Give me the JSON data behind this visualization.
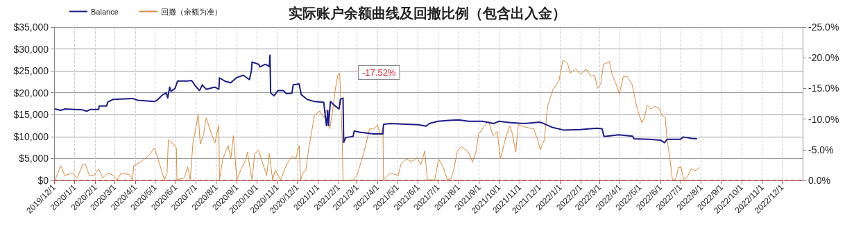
{
  "chart_data": {
    "type": "line",
    "title": "实际账户余额曲线及回撤比例（包含出入金）",
    "legend": "top left",
    "grid": true,
    "xlim": [
      "2019-12-01",
      "2023-01-01"
    ],
    "xticks": [
      {
        "value": "2019-12-01",
        "label": "2019/12/1"
      },
      {
        "value": "2020-01-01",
        "label": "2020/1/1"
      },
      {
        "value": "2020-02-01",
        "label": "2020/2/1"
      },
      {
        "value": "2020-03-01",
        "label": "2020/3/1"
      },
      {
        "value": "2020-04-01",
        "label": "2020/4/1"
      },
      {
        "value": "2020-05-01",
        "label": "2020/5/1"
      },
      {
        "value": "2020-06-01",
        "label": "2020/6/1"
      },
      {
        "value": "2020-07-01",
        "label": "2020/7/1"
      },
      {
        "value": "2020-08-01",
        "label": "2020/8/1"
      },
      {
        "value": "2020-09-01",
        "label": "2020/9/1"
      },
      {
        "value": "2020-10-01",
        "label": "2020/10/1"
      },
      {
        "value": "2020-11-01",
        "label": "2020/11/1"
      },
      {
        "value": "2020-12-01",
        "label": "2020/12/1"
      },
      {
        "value": "2021-01-01",
        "label": "2021/1/1"
      },
      {
        "value": "2021-02-01",
        "label": "2021/2/1"
      },
      {
        "value": "2021-03-01",
        "label": "2021/3/1"
      },
      {
        "value": "2021-04-01",
        "label": "2021/4/1"
      },
      {
        "value": "2021-05-01",
        "label": "2021/5/1"
      },
      {
        "value": "2021-06-01",
        "label": "2021/6/1"
      },
      {
        "value": "2021-07-01",
        "label": "2021/7/1"
      },
      {
        "value": "2021-08-01",
        "label": "2021/8/1"
      },
      {
        "value": "2021-09-01",
        "label": "2021/9/1"
      },
      {
        "value": "2021-10-01",
        "label": "2021/10/1"
      },
      {
        "value": "2021-11-01",
        "label": "2021/11/1"
      },
      {
        "value": "2021-12-01",
        "label": "2021/12/1"
      },
      {
        "value": "2022-01-01",
        "label": "2022/1/1"
      },
      {
        "value": "2022-02-01",
        "label": "2022/2/1"
      },
      {
        "value": "2022-03-01",
        "label": "2022/3/1"
      },
      {
        "value": "2022-04-01",
        "label": "2022/4/1"
      },
      {
        "value": "2022-05-01",
        "label": "2022/5/1"
      },
      {
        "value": "2022-06-01",
        "label": "2022/6/1"
      },
      {
        "value": "2022-07-01",
        "label": "2022/7/1"
      },
      {
        "value": "2022-08-01",
        "label": "2022/8/1"
      },
      {
        "value": "2022-09-01",
        "label": "2022/9/1"
      },
      {
        "value": "2022-10-01",
        "label": "2022/10/1"
      },
      {
        "value": "2022-11-01",
        "label": "2022/11/1"
      },
      {
        "value": "2022-12-01",
        "label": "2022/12/1"
      }
    ],
    "ylim": [
      0,
      35000
    ],
    "yticks": [
      {
        "value": 0,
        "label": "$0"
      },
      {
        "value": 5000,
        "label": "$5,000"
      },
      {
        "value": 10000,
        "label": "$10,000"
      },
      {
        "value": 15000,
        "label": "$15,000"
      },
      {
        "value": 20000,
        "label": "$20,000"
      },
      {
        "value": 25000,
        "label": "$25,000"
      },
      {
        "value": 30000,
        "label": "$30,000"
      },
      {
        "value": 35000,
        "label": "$35,000"
      }
    ],
    "y2lim": [
      0,
      -25
    ],
    "y2ticks": [
      {
        "value": 0,
        "label": "0.0%"
      },
      {
        "value": -5,
        "label": "-5.0%"
      },
      {
        "value": -10,
        "label": "-10.0%"
      },
      {
        "value": -15,
        "label": "-15.0%"
      },
      {
        "value": -20,
        "label": "-20.0%"
      },
      {
        "value": -25,
        "label": "-25.0%"
      }
    ],
    "annotations": [
      "-17.52%"
    ],
    "series": [
      {
        "name": "Balance",
        "color": "#1c1c8a",
        "x": [
          "2019-12-02",
          "2019-12-11",
          "2019-12-17",
          "2020-01-01",
          "2020-01-13",
          "2020-01-19",
          "2020-01-25",
          "2020-02-06",
          "2020-02-07",
          "2020-02-18",
          "2020-02-20",
          "2020-02-28",
          "2020-03-28",
          "2020-04-05",
          "2020-04-30",
          "2020-05-04",
          "2020-05-12",
          "2020-05-18",
          "2020-05-20",
          "2020-05-23",
          "2020-05-25",
          "2020-05-31",
          "2020-06-04",
          "2020-06-19",
          "2020-06-25",
          "2020-07-01",
          "2020-07-07",
          "2020-07-11",
          "2020-07-17",
          "2020-07-30",
          "2020-08-05",
          "2020-08-06",
          "2020-08-15",
          "2020-08-23",
          "2020-09-01",
          "2020-09-11",
          "2020-09-20",
          "2020-09-23",
          "2020-09-24",
          "2020-10-04",
          "2020-10-06",
          "2020-10-14",
          "2020-10-20",
          "2020-10-21",
          "2020-10-22",
          "2020-10-27",
          "2020-11-02",
          "2020-11-10",
          "2020-11-15",
          "2020-11-23",
          "2020-11-25",
          "2020-12-04",
          "2020-12-07",
          "2020-12-16",
          "2020-12-27",
          "2021-01-10",
          "2021-01-14",
          "2021-01-16",
          "2021-01-17",
          "2021-01-20",
          "2021-01-27",
          "2021-02-02",
          "2021-02-04",
          "2021-02-08",
          "2021-02-09",
          "2021-02-12",
          "2021-02-23",
          "2021-02-25",
          "2021-03-05",
          "2021-03-26",
          "2021-04-09",
          "2021-04-10",
          "2021-04-20",
          "2021-06-01",
          "2021-06-13",
          "2021-06-18",
          "2021-07-01",
          "2021-07-17",
          "2021-08-01",
          "2021-08-16",
          "2021-09-06",
          "2021-09-23",
          "2021-10-01",
          "2021-10-18",
          "2021-11-08",
          "2021-12-01",
          "2021-12-07",
          "2021-12-20",
          "2022-01-06",
          "2022-01-31",
          "2022-02-25",
          "2022-03-05",
          "2022-03-08",
          "2022-03-30",
          "2022-04-20",
          "2022-04-22",
          "2022-05-15",
          "2022-06-01",
          "2022-06-07",
          "2022-06-11",
          "2022-07-01",
          "2022-07-05",
          "2022-07-18",
          "2022-07-26"
        ],
        "values": [
          16300,
          16000,
          16300,
          16200,
          16100,
          15800,
          16200,
          16200,
          17000,
          17000,
          17900,
          18500,
          18700,
          18300,
          18000,
          18300,
          19500,
          20000,
          18800,
          21300,
          20300,
          21000,
          22700,
          22700,
          22800,
          21500,
          20500,
          21800,
          20800,
          21300,
          20800,
          23400,
          22600,
          22300,
          23500,
          24000,
          23000,
          25000,
          27000,
          26500,
          25900,
          26500,
          26000,
          28600,
          20000,
          19300,
          20500,
          20500,
          19800,
          19900,
          21800,
          22000,
          19600,
          18500,
          18000,
          17800,
          12500,
          16000,
          12500,
          18000,
          17000,
          16300,
          18500,
          18800,
          8700,
          9800,
          10000,
          11300,
          11000,
          10600,
          10600,
          12800,
          13000,
          12700,
          12400,
          13000,
          13500,
          13700,
          13800,
          13500,
          13500,
          13000,
          13500,
          13200,
          13000,
          13300,
          13000,
          12100,
          11500,
          11600,
          11900,
          11800,
          10000,
          10400,
          10100,
          9500,
          9400,
          9200,
          8600,
          9400,
          9400,
          9900,
          9600,
          9500
        ]
      },
      {
        "name": "回撤（余额为准）",
        "color": "#d98b3a",
        "axis": "y2",
        "x": [
          "2019-12-02",
          "2019-12-11",
          "2019-12-17",
          "2019-12-28",
          "2020-01-05",
          "2020-01-13",
          "2020-01-17",
          "2020-01-23",
          "2020-01-30",
          "2020-02-06",
          "2020-02-12",
          "2020-02-20",
          "2020-02-28",
          "2020-03-05",
          "2020-03-11",
          "2020-03-24",
          "2020-03-28",
          "2020-03-30",
          "2020-04-09",
          "2020-04-22",
          "2020-04-30",
          "2020-05-04",
          "2020-05-08",
          "2020-05-15",
          "2020-05-19",
          "2020-05-21",
          "2020-05-29",
          "2020-06-02",
          "2020-06-03",
          "2020-06-14",
          "2020-06-19",
          "2020-06-23",
          "2020-06-27",
          "2020-07-01",
          "2020-07-05",
          "2020-07-08",
          "2020-07-13",
          "2020-07-17",
          "2020-07-24",
          "2020-07-30",
          "2020-08-05",
          "2020-08-06",
          "2020-08-11",
          "2020-08-19",
          "2020-08-23",
          "2020-08-27",
          "2020-09-01",
          "2020-09-07",
          "2020-09-15",
          "2020-09-17",
          "2020-09-24",
          "2020-09-28",
          "2020-10-04",
          "2020-10-08",
          "2020-10-16",
          "2020-10-20",
          "2020-10-25",
          "2020-10-29",
          "2020-11-06",
          "2020-11-15",
          "2020-11-23",
          "2020-11-29",
          "2020-12-04",
          "2020-12-06",
          "2020-12-10",
          "2020-12-14",
          "2020-12-18",
          "2020-12-27",
          "2021-01-04",
          "2021-01-10",
          "2021-01-14",
          "2021-01-19",
          "2021-01-23",
          "2021-01-27",
          "2021-01-31",
          "2021-02-03",
          "2021-02-04",
          "2021-02-07",
          "2021-02-08",
          "2021-02-23",
          "2021-03-01",
          "2021-03-11",
          "2021-03-20",
          "2021-03-26",
          "2021-04-01",
          "2021-04-05",
          "2021-04-09",
          "2021-04-10",
          "2021-04-20",
          "2021-05-02",
          "2021-05-06",
          "2021-05-14",
          "2021-05-22",
          "2021-05-31",
          "2021-06-05",
          "2021-06-11",
          "2021-06-15",
          "2021-06-26",
          "2021-07-02",
          "2021-07-09",
          "2021-07-15",
          "2021-07-21",
          "2021-07-25",
          "2021-07-30",
          "2021-08-05",
          "2021-08-16",
          "2021-08-22",
          "2021-08-27",
          "2021-08-31",
          "2021-09-09",
          "2021-09-15",
          "2021-09-22",
          "2021-09-28",
          "2021-10-03",
          "2021-10-11",
          "2021-10-17",
          "2021-10-21",
          "2021-10-26",
          "2021-10-30",
          "2021-11-09",
          "2021-11-22",
          "2021-11-28",
          "2021-12-02",
          "2021-12-08",
          "2021-12-13",
          "2021-12-21",
          "2021-12-30",
          "2022-01-05",
          "2022-01-12",
          "2022-01-16",
          "2022-01-24",
          "2022-02-01",
          "2022-02-09",
          "2022-02-16",
          "2022-02-22",
          "2022-02-26",
          "2022-03-03",
          "2022-03-07",
          "2022-03-16",
          "2022-03-20",
          "2022-03-26",
          "2022-03-31",
          "2022-04-06",
          "2022-04-12",
          "2022-04-19",
          "2022-04-23",
          "2022-04-27",
          "2022-05-04",
          "2022-05-08",
          "2022-05-12",
          "2022-05-18",
          "2022-05-23",
          "2022-05-29",
          "2022-06-04",
          "2022-06-08",
          "2022-06-11",
          "2022-06-15",
          "2022-06-19",
          "2022-06-24",
          "2022-06-28",
          "2022-07-02",
          "2022-07-06",
          "2022-07-12",
          "2022-07-17",
          "2022-07-23",
          "2022-07-30"
        ],
        "values": [
          0,
          -2.4,
          -0.8,
          -1.2,
          -0.4,
          -2.6,
          -2.7,
          -0.8,
          -0.8,
          -1.9,
          -0.4,
          -1.2,
          -0.8,
          -0.1,
          -1.2,
          -0.9,
          -0.1,
          -2.4,
          -3.0,
          -4.1,
          -5.3,
          -4.0,
          -2.6,
          -0.1,
          -1.2,
          -6.6,
          -5.9,
          -5.3,
          -0.1,
          -0.4,
          -2.2,
          -0.1,
          -6.1,
          -8.4,
          -10.8,
          -5.9,
          -7.5,
          -10.2,
          -7.9,
          -6.1,
          -9.0,
          -0.1,
          -3.5,
          -5.7,
          -3.5,
          -7.3,
          -0.1,
          -1.7,
          -3.5,
          -4.6,
          -0.1,
          -4.4,
          -4.9,
          -3.5,
          -0.8,
          -4.4,
          -0.1,
          -1.7,
          -0.1,
          -2.6,
          -3.9,
          -3.6,
          -5.7,
          -0.1,
          -1.2,
          -1.7,
          -5.0,
          -10.6,
          -11.3,
          -10.2,
          -11.5,
          -8.4,
          -11.1,
          -14.6,
          -17.1,
          -17.52,
          -14.6,
          -6.1,
          0,
          -0.1,
          -0.8,
          -4.4,
          -8.4,
          -8.4,
          -9.0,
          -7.5,
          -8.6,
          -0.1,
          -1.2,
          -0.8,
          -2.6,
          -3.5,
          -3.1,
          -3.7,
          -2.5,
          -4.8,
          -0.1,
          -0.1,
          -3.5,
          -2.1,
          -0.1,
          -0.3,
          -1.9,
          -4.8,
          -5.5,
          -4.6,
          -3.0,
          -4.6,
          -7.5,
          -8.9,
          -9.6,
          -7.3,
          -8.0,
          -3.5,
          -7.0,
          -8.9,
          -7.6,
          -4.6,
          -9.1,
          -8.7,
          -8.4,
          -6.6,
          -5.0,
          -6.6,
          -12.1,
          -14.8,
          -16.2,
          -19.6,
          -19.1,
          -17.5,
          -18.2,
          -17.3,
          -18.2,
          -17.0,
          -17.1,
          -15.0,
          -15.7,
          -18.9,
          -19.4,
          -17.3,
          -15.7,
          -14.1,
          -16.9,
          -16.9,
          -15.7,
          -13.7,
          -11.6,
          -9.4,
          -10.3,
          -12.3,
          -11.6,
          -12.1,
          -11.8,
          -10.5,
          -10.3,
          -6.6,
          -3.7,
          0,
          -0.3,
          -2.1,
          -2.1,
          0,
          -0.7,
          -1.9,
          -1.6,
          -2.1
        ]
      }
    ]
  }
}
